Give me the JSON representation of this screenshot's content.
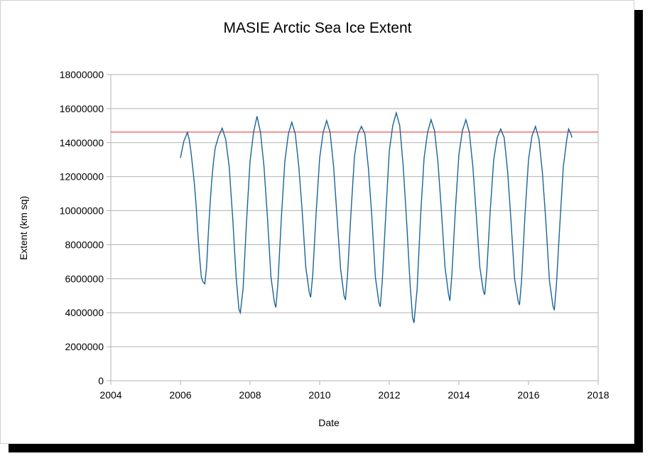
{
  "chart_data": {
    "type": "line",
    "title": "MASIE Arctic Sea Ice Extent",
    "xlabel": "Date",
    "ylabel": "Extent (km sq)",
    "xlim": [
      2004,
      2018
    ],
    "ylim": [
      0,
      18000000
    ],
    "x_ticks": [
      "2004",
      "2006",
      "2008",
      "2010",
      "2012",
      "2014",
      "2016",
      "2018"
    ],
    "y_ticks": [
      "0",
      "2000000",
      "4000000",
      "6000000",
      "8000000",
      "10000000",
      "12000000",
      "14000000",
      "16000000",
      "18000000"
    ],
    "grid": "horizontal",
    "legend": "none",
    "reference_line": {
      "y": 14620000,
      "color": "#e8413a"
    },
    "series": [
      {
        "color": "#1a6496",
        "points": [
          [
            2006.0,
            13100000
          ],
          [
            2006.05,
            13600000
          ],
          [
            2006.1,
            14100000
          ],
          [
            2006.15,
            14350000
          ],
          [
            2006.2,
            14600000
          ],
          [
            2006.25,
            14200000
          ],
          [
            2006.3,
            13500000
          ],
          [
            2006.35,
            12600000
          ],
          [
            2006.4,
            11600000
          ],
          [
            2006.45,
            10300000
          ],
          [
            2006.5,
            8700000
          ],
          [
            2006.55,
            7300000
          ],
          [
            2006.6,
            6100000
          ],
          [
            2006.65,
            5800000
          ],
          [
            2006.7,
            5700000
          ],
          [
            2006.75,
            6700000
          ],
          [
            2006.8,
            8600000
          ],
          [
            2006.85,
            10300000
          ],
          [
            2006.9,
            11800000
          ],
          [
            2006.95,
            12900000
          ],
          [
            2007.0,
            13700000
          ],
          [
            2007.1,
            14400000
          ],
          [
            2007.2,
            14850000
          ],
          [
            2007.3,
            14200000
          ],
          [
            2007.4,
            12600000
          ],
          [
            2007.5,
            9600000
          ],
          [
            2007.6,
            6100000
          ],
          [
            2007.68,
            4200000
          ],
          [
            2007.72,
            4000000
          ],
          [
            2007.8,
            5400000
          ],
          [
            2007.9,
            9400000
          ],
          [
            2008.0,
            12900000
          ],
          [
            2008.1,
            14600000
          ],
          [
            2008.2,
            15550000
          ],
          [
            2008.3,
            14600000
          ],
          [
            2008.4,
            12600000
          ],
          [
            2008.5,
            9600000
          ],
          [
            2008.6,
            6100000
          ],
          [
            2008.7,
            4600000
          ],
          [
            2008.74,
            4300000
          ],
          [
            2008.8,
            5700000
          ],
          [
            2008.9,
            9600000
          ],
          [
            2009.0,
            12900000
          ],
          [
            2009.1,
            14500000
          ],
          [
            2009.2,
            15200000
          ],
          [
            2009.3,
            14500000
          ],
          [
            2009.4,
            12600000
          ],
          [
            2009.5,
            9900000
          ],
          [
            2009.6,
            6700000
          ],
          [
            2009.7,
            5200000
          ],
          [
            2009.74,
            4900000
          ],
          [
            2009.8,
            6200000
          ],
          [
            2009.9,
            9900000
          ],
          [
            2010.0,
            13100000
          ],
          [
            2010.1,
            14600000
          ],
          [
            2010.2,
            15300000
          ],
          [
            2010.3,
            14600000
          ],
          [
            2010.4,
            12600000
          ],
          [
            2010.5,
            9600000
          ],
          [
            2010.6,
            6600000
          ],
          [
            2010.7,
            5000000
          ],
          [
            2010.74,
            4750000
          ],
          [
            2010.8,
            6200000
          ],
          [
            2010.9,
            9900000
          ],
          [
            2011.0,
            13200000
          ],
          [
            2011.1,
            14500000
          ],
          [
            2011.2,
            14950000
          ],
          [
            2011.3,
            14500000
          ],
          [
            2011.4,
            12500000
          ],
          [
            2011.5,
            9600000
          ],
          [
            2011.6,
            6100000
          ],
          [
            2011.7,
            4600000
          ],
          [
            2011.74,
            4350000
          ],
          [
            2011.8,
            5900000
          ],
          [
            2011.9,
            9800000
          ],
          [
            2012.0,
            13500000
          ],
          [
            2012.1,
            15000000
          ],
          [
            2012.2,
            15750000
          ],
          [
            2012.3,
            15000000
          ],
          [
            2012.4,
            12600000
          ],
          [
            2012.5,
            9300000
          ],
          [
            2012.6,
            5600000
          ],
          [
            2012.67,
            3700000
          ],
          [
            2012.71,
            3400000
          ],
          [
            2012.8,
            5400000
          ],
          [
            2012.9,
            9700000
          ],
          [
            2013.0,
            13100000
          ],
          [
            2013.1,
            14600000
          ],
          [
            2013.2,
            15350000
          ],
          [
            2013.3,
            14700000
          ],
          [
            2013.4,
            12800000
          ],
          [
            2013.5,
            9900000
          ],
          [
            2013.6,
            6700000
          ],
          [
            2013.7,
            5100000
          ],
          [
            2013.74,
            4700000
          ],
          [
            2013.8,
            6300000
          ],
          [
            2013.9,
            10100000
          ],
          [
            2014.0,
            13300000
          ],
          [
            2014.1,
            14700000
          ],
          [
            2014.2,
            15350000
          ],
          [
            2014.3,
            14600000
          ],
          [
            2014.4,
            12600000
          ],
          [
            2014.5,
            9700000
          ],
          [
            2014.6,
            6700000
          ],
          [
            2014.7,
            5300000
          ],
          [
            2014.74,
            5050000
          ],
          [
            2014.8,
            6400000
          ],
          [
            2014.9,
            10000000
          ],
          [
            2015.0,
            13000000
          ],
          [
            2015.1,
            14300000
          ],
          [
            2015.2,
            14800000
          ],
          [
            2015.3,
            14300000
          ],
          [
            2015.4,
            12300000
          ],
          [
            2015.5,
            9300000
          ],
          [
            2015.6,
            6000000
          ],
          [
            2015.7,
            4700000
          ],
          [
            2015.74,
            4450000
          ],
          [
            2015.8,
            5900000
          ],
          [
            2015.9,
            9800000
          ],
          [
            2016.0,
            13000000
          ],
          [
            2016.1,
            14400000
          ],
          [
            2016.2,
            14950000
          ],
          [
            2016.3,
            14200000
          ],
          [
            2016.4,
            12200000
          ],
          [
            2016.5,
            9300000
          ],
          [
            2016.6,
            5900000
          ],
          [
            2016.7,
            4400000
          ],
          [
            2016.74,
            4150000
          ],
          [
            2016.8,
            5600000
          ],
          [
            2016.9,
            9200000
          ],
          [
            2017.0,
            12600000
          ],
          [
            2017.1,
            14200000
          ],
          [
            2017.15,
            14800000
          ],
          [
            2017.2,
            14600000
          ],
          [
            2017.25,
            14300000
          ]
        ]
      }
    ]
  }
}
